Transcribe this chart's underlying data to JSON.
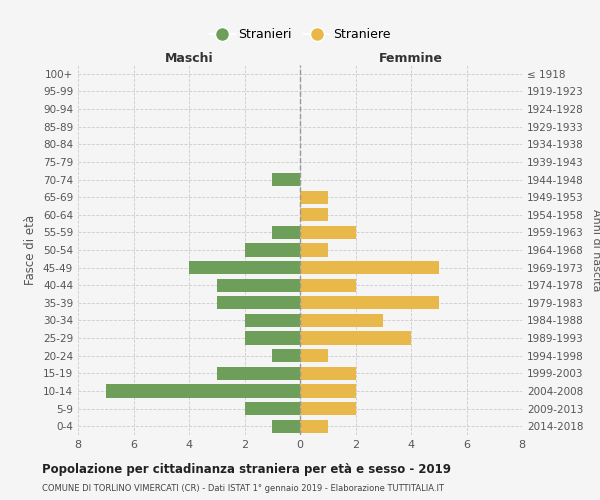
{
  "age_groups": [
    "100+",
    "95-99",
    "90-94",
    "85-89",
    "80-84",
    "75-79",
    "70-74",
    "65-69",
    "60-64",
    "55-59",
    "50-54",
    "45-49",
    "40-44",
    "35-39",
    "30-34",
    "25-29",
    "20-24",
    "15-19",
    "10-14",
    "5-9",
    "0-4"
  ],
  "birth_years": [
    "≤ 1918",
    "1919-1923",
    "1924-1928",
    "1929-1933",
    "1934-1938",
    "1939-1943",
    "1944-1948",
    "1949-1953",
    "1954-1958",
    "1959-1963",
    "1964-1968",
    "1969-1973",
    "1974-1978",
    "1979-1983",
    "1984-1988",
    "1989-1993",
    "1994-1998",
    "1999-2003",
    "2004-2008",
    "2009-2013",
    "2014-2018"
  ],
  "males": [
    0,
    0,
    0,
    0,
    0,
    0,
    1,
    0,
    0,
    1,
    2,
    4,
    3,
    3,
    2,
    2,
    1,
    3,
    7,
    2,
    1
  ],
  "females": [
    0,
    0,
    0,
    0,
    0,
    0,
    0,
    1,
    1,
    2,
    1,
    5,
    2,
    5,
    3,
    4,
    1,
    2,
    2,
    2,
    1
  ],
  "male_color": "#6d9e5a",
  "female_color": "#e8b84b",
  "background_color": "#f5f5f5",
  "grid_color": "#cccccc",
  "title": "Popolazione per cittadinanza straniera per età e sesso - 2019",
  "subtitle": "COMUNE DI TORLINO VIMERCATI (CR) - Dati ISTAT 1° gennaio 2019 - Elaborazione TUTTITALIA.IT",
  "xlabel_left": "Maschi",
  "xlabel_right": "Femmine",
  "ylabel_left": "Fasce di età",
  "ylabel_right": "Anni di nascita",
  "legend_male": "Stranieri",
  "legend_female": "Straniere",
  "xlim": 8,
  "bar_height": 0.75
}
